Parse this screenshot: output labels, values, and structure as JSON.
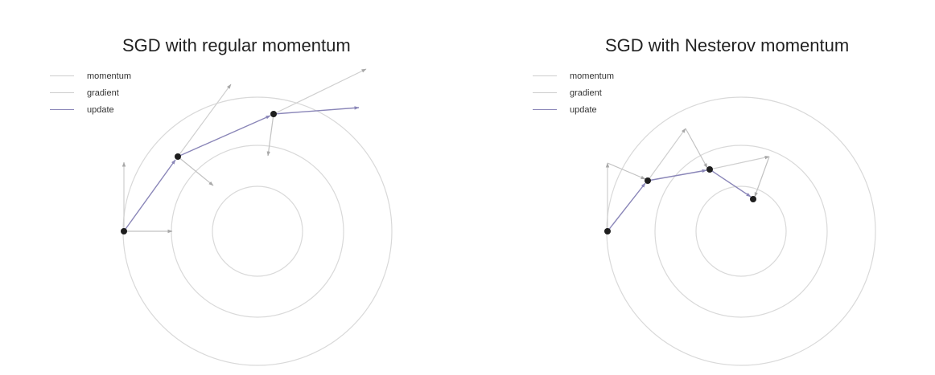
{
  "panels": [
    {
      "title": "SGD with regular momentum",
      "legend": [
        "momentum",
        "gradient",
        "update"
      ]
    },
    {
      "title": "SGD with Nesterov momentum",
      "legend": [
        "momentum",
        "gradient",
        "update"
      ]
    }
  ],
  "colors": {
    "contour": "#d9d9d9",
    "momentum": "#cfcfcf",
    "gradient": "#c2c2c2",
    "update": "#8a86b8",
    "point": "#1e1e1e"
  }
}
